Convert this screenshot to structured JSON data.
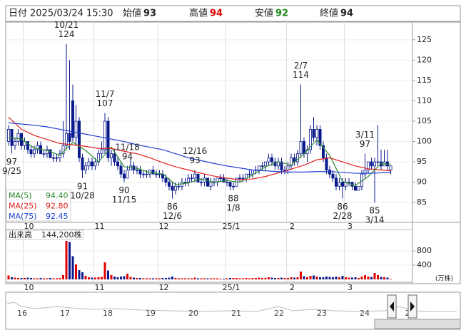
{
  "header": {
    "date_label": "日付",
    "datetime": "2025/03/24 15:30",
    "open_label": "始値",
    "open": 93,
    "high_label": "高値",
    "high": 94,
    "low_label": "安値",
    "low": 92,
    "close_label": "終値",
    "close": 94
  },
  "chart_data": [
    {
      "type": "candlestick",
      "ylim": [
        81,
        129
      ],
      "yticks": [
        85,
        90,
        95,
        100,
        105,
        110,
        115,
        120,
        125
      ],
      "up_color": "#ffffff",
      "down_color": "#0a1a8c",
      "grid": true,
      "xticks": [
        {
          "value": 5,
          "label": "10"
        },
        {
          "value": 27,
          "label": "11"
        },
        {
          "value": 47,
          "label": "12"
        },
        {
          "value": 68,
          "label": "25/1"
        },
        {
          "value": 87,
          "label": "2"
        },
        {
          "value": 105,
          "label": "3"
        }
      ],
      "ohlc": [
        [
          100,
          104,
          99,
          103
        ],
        [
          103,
          103,
          97,
          99
        ],
        [
          99,
          101,
          98,
          100
        ],
        [
          100,
          103,
          99,
          102
        ],
        [
          102,
          102,
          98,
          99
        ],
        [
          99,
          101,
          98,
          100
        ],
        [
          100,
          100,
          97,
          98
        ],
        [
          98,
          99,
          96,
          97
        ],
        [
          97,
          99,
          96,
          98
        ],
        [
          98,
          100,
          97,
          99
        ],
        [
          99,
          100,
          97,
          97
        ],
        [
          97,
          98,
          96,
          97
        ],
        [
          97,
          99,
          96,
          98
        ],
        [
          98,
          98,
          96,
          96
        ],
        [
          96,
          97,
          95,
          96
        ],
        [
          96,
          97,
          95,
          96
        ],
        [
          96,
          98,
          95,
          97
        ],
        [
          97,
          105,
          96,
          99
        ],
        [
          99,
          124,
          98,
          102
        ],
        [
          102,
          120,
          98,
          100
        ],
        [
          110,
          114,
          100,
          101
        ],
        [
          101,
          109,
          99,
          105
        ],
        [
          105,
          106,
          95,
          96
        ],
        [
          96,
          97,
          91,
          93
        ],
        [
          93,
          95,
          92,
          94
        ],
        [
          94,
          96,
          93,
          95
        ],
        [
          95,
          96,
          93,
          94
        ],
        [
          94,
          96,
          93,
          95
        ],
        [
          95,
          98,
          94,
          97
        ],
        [
          97,
          100,
          96,
          98
        ],
        [
          98,
          107,
          97,
          105
        ],
        [
          105,
          106,
          95,
          96
        ],
        [
          96,
          98,
          94,
          97
        ],
        [
          97,
          98,
          94,
          95
        ],
        [
          95,
          96,
          93,
          94
        ],
        [
          94,
          95,
          91,
          92
        ],
        [
          92,
          93,
          90,
          91
        ],
        [
          91,
          94,
          91,
          93
        ],
        [
          93,
          96,
          93,
          94
        ],
        [
          94,
          95,
          92,
          93
        ],
        [
          93,
          94,
          92,
          93
        ],
        [
          93,
          94,
          91,
          92
        ],
        [
          92,
          93,
          91,
          92
        ],
        [
          92,
          93,
          91,
          92
        ],
        [
          92,
          93,
          91,
          93
        ],
        [
          93,
          94,
          92,
          92
        ],
        [
          92,
          93,
          91,
          92
        ],
        [
          92,
          93,
          91,
          92
        ],
        [
          92,
          93,
          90,
          91
        ],
        [
          91,
          92,
          89,
          90
        ],
        [
          90,
          91,
          88,
          89
        ],
        [
          89,
          90,
          86,
          88
        ],
        [
          88,
          90,
          87,
          89
        ],
        [
          89,
          90,
          88,
          89
        ],
        [
          89,
          91,
          88,
          90
        ],
        [
          90,
          91,
          89,
          90
        ],
        [
          90,
          92,
          89,
          91
        ],
        [
          91,
          92,
          90,
          91
        ],
        [
          91,
          93,
          90,
          92
        ],
        [
          92,
          92,
          90,
          90
        ],
        [
          90,
          91,
          89,
          90
        ],
        [
          90,
          92,
          89,
          91
        ],
        [
          91,
          91,
          89,
          89
        ],
        [
          89,
          91,
          88,
          90
        ],
        [
          90,
          91,
          89,
          90
        ],
        [
          90,
          91,
          89,
          91
        ],
        [
          91,
          92,
          90,
          91
        ],
        [
          91,
          92,
          90,
          90
        ],
        [
          90,
          91,
          89,
          90
        ],
        [
          90,
          90,
          88,
          89
        ],
        [
          89,
          90,
          88,
          89
        ],
        [
          89,
          91,
          89,
          91
        ],
        [
          91,
          92,
          90,
          91
        ],
        [
          91,
          92,
          90,
          91
        ],
        [
          91,
          92,
          90,
          92
        ],
        [
          92,
          93,
          91,
          92
        ],
        [
          92,
          93,
          91,
          93
        ],
        [
          93,
          94,
          92,
          93
        ],
        [
          93,
          94,
          92,
          94
        ],
        [
          94,
          95,
          93,
          94
        ],
        [
          94,
          95,
          93,
          95
        ],
        [
          95,
          97,
          94,
          96
        ],
        [
          96,
          97,
          94,
          95
        ],
        [
          95,
          96,
          93,
          94
        ],
        [
          94,
          96,
          93,
          95
        ],
        [
          95,
          96,
          92,
          93
        ],
        [
          93,
          94,
          92,
          93
        ],
        [
          93,
          95,
          92,
          94
        ],
        [
          94,
          97,
          93,
          96
        ],
        [
          96,
          97,
          94,
          95
        ],
        [
          95,
          98,
          94,
          97
        ],
        [
          97,
          114,
          96,
          100
        ],
        [
          100,
          101,
          96,
          97
        ],
        [
          97,
          99,
          95,
          98
        ],
        [
          98,
          104,
          97,
          103
        ],
        [
          103,
          106,
          100,
          101
        ],
        [
          101,
          104,
          99,
          103
        ],
        [
          103,
          104,
          98,
          99
        ],
        [
          99,
          100,
          95,
          96
        ],
        [
          96,
          97,
          92,
          93
        ],
        [
          93,
          94,
          91,
          92
        ],
        [
          92,
          93,
          90,
          91
        ],
        [
          91,
          92,
          88,
          89
        ],
        [
          89,
          91,
          88,
          90
        ],
        [
          90,
          91,
          86,
          89
        ],
        [
          89,
          91,
          88,
          90
        ],
        [
          90,
          91,
          89,
          90
        ],
        [
          90,
          90,
          88,
          89
        ],
        [
          89,
          90,
          88,
          88
        ],
        [
          88,
          89,
          88,
          89
        ],
        [
          89,
          93,
          88,
          92
        ],
        [
          92,
          97,
          91,
          93
        ],
        [
          93,
          95,
          92,
          95
        ],
        [
          95,
          96,
          93,
          94
        ],
        [
          94,
          96,
          85,
          95
        ],
        [
          95,
          104,
          94,
          95
        ],
        [
          95,
          98,
          93,
          94
        ],
        [
          94,
          98,
          94,
          95
        ],
        [
          95,
          98,
          93,
          94
        ],
        [
          93,
          94,
          92,
          94
        ]
      ],
      "ma_x": [
        0,
        4,
        8,
        12,
        16,
        20,
        24,
        28,
        32,
        36,
        40,
        44,
        48,
        52,
        56,
        60,
        64,
        68,
        72,
        76,
        80,
        84,
        88,
        92,
        96,
        100,
        104,
        108,
        112,
        116,
        119
      ],
      "series": [
        {
          "name": "MA(5)",
          "color": "#2e8b2e",
          "latest": {
            "value": 94.4,
            "label": "94.40"
          },
          "values": [
            101,
            100.6,
            98.4,
            97.8,
            96.6,
            99.8,
            97.8,
            95,
            98.6,
            93.8,
            93.4,
            92.4,
            92,
            89.4,
            89.8,
            90.8,
            90,
            90.4,
            90,
            91.8,
            93.8,
            95,
            94.2,
            97,
            100.4,
            96.6,
            90.2,
            89.2,
            91.4,
            94.6,
            94.4
          ]
        },
        {
          "name": "MA(25)",
          "color": "#e02020",
          "latest": {
            "value": 92.8,
            "label": "92.80"
          },
          "values": [
            106,
            103,
            101.5,
            100.5,
            99.5,
            99.2,
            98.8,
            98.3,
            98.3,
            97.6,
            97,
            96,
            94.8,
            93.8,
            93,
            92.2,
            91.5,
            91,
            90.6,
            90.8,
            91.4,
            92.3,
            93.2,
            94.2,
            95.5,
            96,
            95,
            94,
            93.3,
            93,
            92.8
          ]
        },
        {
          "name": "MA(75)",
          "color": "#2040d0",
          "latest": {
            "value": 92.45,
            "label": "92.45"
          },
          "values": [
            104.6,
            104.3,
            104,
            103.6,
            103,
            102.4,
            101.8,
            101.2,
            100.6,
            100,
            99.2,
            98.6,
            98,
            97,
            96,
            95.3,
            94.6,
            94,
            93.5,
            93,
            92.8,
            92.6,
            92.5,
            92.5,
            92.6,
            92.6,
            92.4,
            92.2,
            92.2,
            92.3,
            92.45
          ]
        }
      ],
      "annotations": [
        {
          "index": 1,
          "date": "9/25",
          "value": 97,
          "kind": "low"
        },
        {
          "index": 18,
          "date": "10/21",
          "value": 124,
          "kind": "high"
        },
        {
          "index": 23,
          "date": "10/28",
          "value": 91,
          "kind": "low"
        },
        {
          "index": 30,
          "date": "11/7",
          "value": 107,
          "kind": "high"
        },
        {
          "index": 36,
          "date": "11/15",
          "value": 90,
          "kind": "low"
        },
        {
          "index": 37,
          "date": "11/18",
          "value": 94,
          "kind": "high"
        },
        {
          "index": 51,
          "date": "12/6",
          "value": 86,
          "kind": "low"
        },
        {
          "index": 58,
          "date": "12/16",
          "value": 93,
          "kind": "high"
        },
        {
          "index": 70,
          "date": "1/8",
          "value": 88,
          "kind": "low"
        },
        {
          "index": 91,
          "date": "2/7",
          "value": 114,
          "kind": "high"
        },
        {
          "index": 104,
          "date": "2/28",
          "value": 86,
          "kind": "low"
        },
        {
          "index": 111,
          "date": "3/11",
          "value": 97,
          "kind": "high"
        },
        {
          "index": 114,
          "date": "3/14",
          "value": 85,
          "kind": "low"
        }
      ]
    },
    {
      "type": "bar",
      "label": "出来高",
      "latest_label": "144,200株",
      "unit": "(万株)",
      "ylim": [
        0,
        1400
      ],
      "yticks": [
        400,
        800
      ],
      "up_color": "#e00000",
      "down_color": "#0a1a8c",
      "values": [
        110,
        60,
        50,
        40,
        40,
        40,
        50,
        40,
        30,
        30,
        40,
        30,
        30,
        40,
        30,
        30,
        40,
        120,
        1080,
        1050,
        650,
        420,
        260,
        200,
        100,
        60,
        50,
        50,
        60,
        70,
        480,
        250,
        120,
        80,
        60,
        80,
        90,
        160,
        70,
        50,
        40,
        40,
        30,
        30,
        30,
        30,
        30,
        30,
        40,
        40,
        50,
        80,
        40,
        30,
        30,
        30,
        30,
        30,
        50,
        30,
        30,
        30,
        30,
        30,
        30,
        30,
        20,
        20,
        30,
        40,
        40,
        40,
        30,
        30,
        40,
        30,
        40,
        40,
        50,
        40,
        40,
        60,
        50,
        40,
        40,
        50,
        40,
        40,
        60,
        50,
        60,
        220,
        90,
        60,
        100,
        110,
        80,
        60,
        60,
        80,
        70,
        60,
        80,
        60,
        100,
        60,
        50,
        50,
        60,
        40,
        80,
        120,
        80,
        70,
        180,
        120,
        70,
        60,
        50,
        14.42
      ]
    }
  ],
  "navigator": {
    "labels": [
      "16",
      "17",
      "18",
      "19",
      "20",
      "21",
      "22",
      "23",
      "24",
      "2"
    ]
  }
}
